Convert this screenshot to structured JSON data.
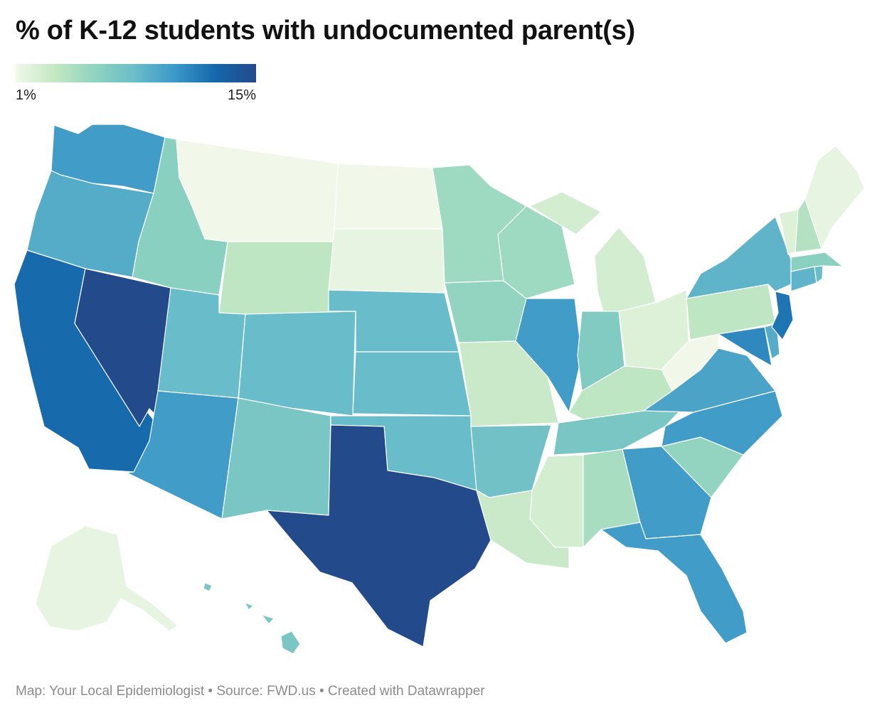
{
  "title": "% of K-12 students with undocumented parent(s)",
  "legend": {
    "min_label": "1%",
    "max_label": "15%",
    "min_value": 1,
    "max_value": 15,
    "colors": [
      "#f1f8ea",
      "#c3e7c2",
      "#8fd3c0",
      "#69bcc9",
      "#3a97c8",
      "#1467a9",
      "#234a8b"
    ]
  },
  "footer": {
    "credit": "Map: Your Local Epidemiologist",
    "source": "Source: FWD.us",
    "tool": "Created with Datawrapper",
    "separator": " • "
  },
  "map_data": {
    "type": "choropleth",
    "unit": "%",
    "states": [
      {
        "code": "WA",
        "value": 10
      },
      {
        "code": "OR",
        "value": 9
      },
      {
        "code": "CA",
        "value": 12.5
      },
      {
        "code": "NV",
        "value": 15
      },
      {
        "code": "ID",
        "value": 6
      },
      {
        "code": "MT",
        "value": 1
      },
      {
        "code": "WY",
        "value": 3.5
      },
      {
        "code": "UT",
        "value": 8
      },
      {
        "code": "AZ",
        "value": 10
      },
      {
        "code": "CO",
        "value": 8
      },
      {
        "code": "NM",
        "value": 7
      },
      {
        "code": "ND",
        "value": 1
      },
      {
        "code": "SD",
        "value": 1.5
      },
      {
        "code": "NE",
        "value": 8
      },
      {
        "code": "KS",
        "value": 8
      },
      {
        "code": "OK",
        "value": 8
      },
      {
        "code": "TX",
        "value": 15
      },
      {
        "code": "MN",
        "value": 5
      },
      {
        "code": "IA",
        "value": 5.5
      },
      {
        "code": "MO",
        "value": 3
      },
      {
        "code": "AR",
        "value": 7.5
      },
      {
        "code": "LA",
        "value": 3
      },
      {
        "code": "WI",
        "value": 5
      },
      {
        "code": "IL",
        "value": 10
      },
      {
        "code": "MI",
        "value": 2.5
      },
      {
        "code": "IN",
        "value": 6.5
      },
      {
        "code": "OH",
        "value": 2
      },
      {
        "code": "KY",
        "value": 3.5
      },
      {
        "code": "TN",
        "value": 7
      },
      {
        "code": "MS",
        "value": 2.5
      },
      {
        "code": "AL",
        "value": 4.5
      },
      {
        "code": "GA",
        "value": 10
      },
      {
        "code": "FL",
        "value": 10
      },
      {
        "code": "SC",
        "value": 5.5
      },
      {
        "code": "NC",
        "value": 10
      },
      {
        "code": "VA",
        "value": 9.5
      },
      {
        "code": "WV",
        "value": 1
      },
      {
        "code": "PA",
        "value": 3.5
      },
      {
        "code": "NY",
        "value": 8.5
      },
      {
        "code": "NJ",
        "value": 12
      },
      {
        "code": "DE",
        "value": 9
      },
      {
        "code": "MD",
        "value": 11
      },
      {
        "code": "CT",
        "value": 8.5
      },
      {
        "code": "RI",
        "value": 8
      },
      {
        "code": "MA",
        "value": 6
      },
      {
        "code": "VT",
        "value": 2
      },
      {
        "code": "NH",
        "value": 4
      },
      {
        "code": "ME",
        "value": 1.5
      },
      {
        "code": "AK",
        "value": 1.5
      },
      {
        "code": "HI",
        "value": 7
      }
    ]
  }
}
